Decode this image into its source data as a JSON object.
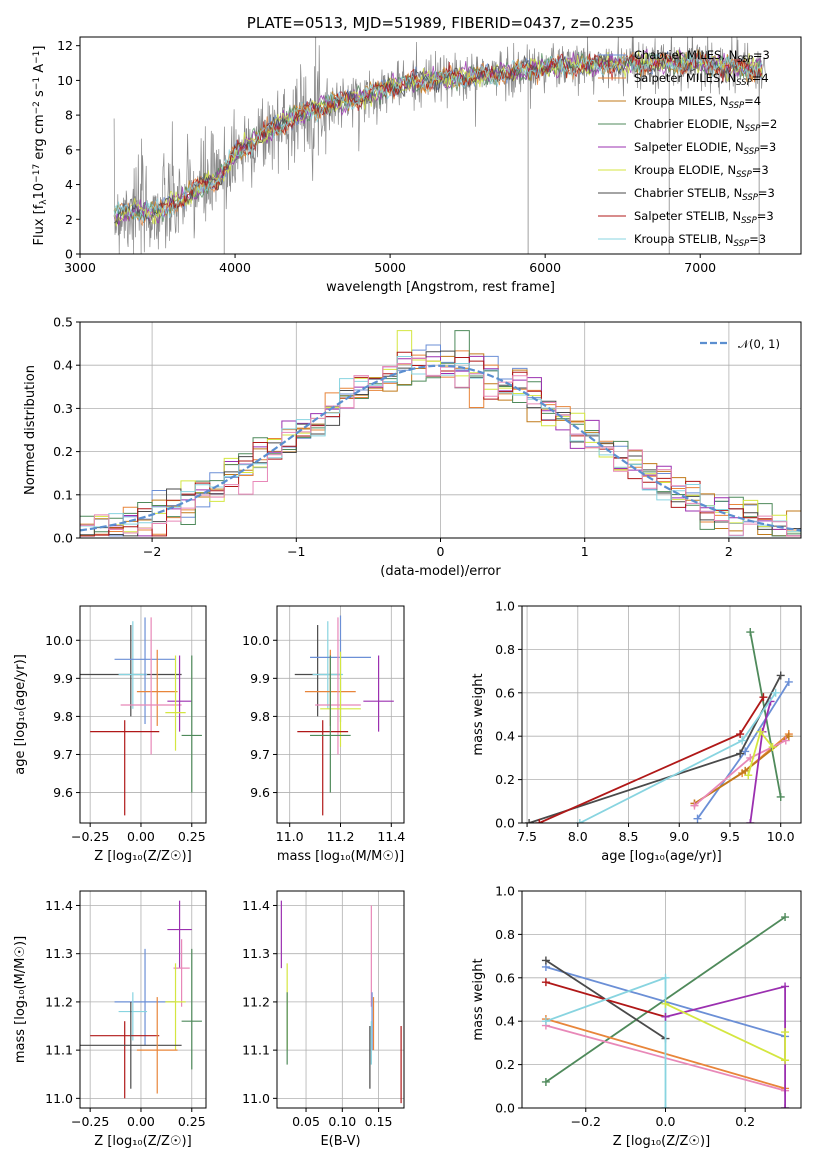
{
  "colors": {
    "chabrier_miles": "#6b8fd6",
    "salpeter_miles": "#e8853a",
    "kroupa_miles": "#c07a1a",
    "chabrier_elodie": "#4f8a5b",
    "salpeter_elodie": "#9b30b0",
    "kroupa_elodie": "#d4e640",
    "chabrier_stelib": "#4a4a4a",
    "salpeter_stelib": "#b01818",
    "kroupa_stelib": "#88d4e0",
    "normal": "#5b8fd0",
    "pink": "#e888b8",
    "grey": "#888888"
  },
  "chart_data": [
    {
      "id": "spectrum",
      "type": "line",
      "title": "PLATE=0513, MJD=51989, FIBERID=0437, z=0.235",
      "xlabel": "wavelength [Angstrom, rest frame]",
      "ylabel_parts": [
        "Flux [f",
        "λ",
        "10",
        "−17",
        " erg cm",
        "−2",
        " s",
        "−1",
        " A",
        "−1",
        "]"
      ],
      "xlim": [
        3000,
        7650
      ],
      "ylim": [
        0,
        12.5
      ],
      "xticks": [
        3000,
        4000,
        5000,
        6000,
        7000
      ],
      "yticks": [
        0,
        2,
        4,
        6,
        8,
        10,
        12
      ],
      "grid": false,
      "legend_position": "top-right",
      "legend": [
        {
          "label": "Chabrier MILES, N",
          "sub": "SSP",
          "suffix": "=3",
          "color": "chabrier_miles"
        },
        {
          "label": "Salpeter MILES, N",
          "sub": "SSP",
          "suffix": "=4",
          "color": "salpeter_miles"
        },
        {
          "label": "Kroupa MILES, N",
          "sub": "SSP",
          "suffix": "=4",
          "color": "kroupa_miles"
        },
        {
          "label": "Chabrier ELODIE, N",
          "sub": "SSP",
          "suffix": "=2",
          "color": "chabrier_elodie"
        },
        {
          "label": "Salpeter ELODIE, N",
          "sub": "SSP",
          "suffix": "=3",
          "color": "salpeter_elodie"
        },
        {
          "label": "Kroupa ELODIE, N",
          "sub": "SSP",
          "suffix": "=3",
          "color": "kroupa_elodie"
        },
        {
          "label": "Chabrier STELIB, N",
          "sub": "SSP",
          "suffix": "=3",
          "color": "chabrier_stelib"
        },
        {
          "label": "Salpeter STELIB, N",
          "sub": "SSP",
          "suffix": "=3",
          "color": "salpeter_stelib"
        },
        {
          "label": "Kroupa STELIB, N",
          "sub": "SSP",
          "suffix": "=3",
          "color": "kroupa_stelib"
        }
      ],
      "continuum": [
        [
          3220,
          2.2
        ],
        [
          3300,
          2.5
        ],
        [
          3500,
          2.4
        ],
        [
          3700,
          3.4
        ],
        [
          3800,
          4.0
        ],
        [
          3900,
          4.3
        ],
        [
          4000,
          5.8
        ],
        [
          4200,
          7.0
        ],
        [
          4400,
          8.0
        ],
        [
          4600,
          8.6
        ],
        [
          4800,
          9.0
        ],
        [
          5000,
          9.6
        ],
        [
          5200,
          10.0
        ],
        [
          5500,
          10.2
        ],
        [
          5800,
          10.5
        ],
        [
          6000,
          10.8
        ],
        [
          6300,
          10.9
        ],
        [
          6600,
          11.0
        ],
        [
          7000,
          11.0
        ],
        [
          7400,
          10.6
        ]
      ]
    },
    {
      "id": "residuals",
      "type": "histogram",
      "xlabel": "(data-model)/error",
      "ylabel": "Normed distribution",
      "xlim": [
        -2.5,
        2.5
      ],
      "ylim": [
        0,
        0.5
      ],
      "xticks": [
        -2,
        -1,
        0,
        1,
        2
      ],
      "xtick_labels": [
        "−2",
        "−1",
        "0",
        "1",
        "2"
      ],
      "yticks": [
        0,
        0.1,
        0.2,
        0.3,
        0.4,
        0.5
      ],
      "grid": true,
      "legend_position": "top-right",
      "legend": [
        {
          "label": "𝒩(0, 1)",
          "color": "normal"
        }
      ],
      "bins": {
        "start": -2.5,
        "width": 0.1,
        "count": 50
      },
      "peaks": {
        "kroupa_elodie": 0.48,
        "chabrier_elodie": 0.48,
        "kroupa_stelib": 0.42,
        "salpeter_stelib": 0.43
      }
    },
    {
      "id": "age_vs_Z",
      "type": "errorbar",
      "xlabel": "Z [log₁₀(Z/Z☉)]",
      "ylabel": "age  [log₁₀(age/yr)]",
      "xlim": [
        -0.3,
        0.32
      ],
      "ylim": [
        9.52,
        10.09
      ],
      "xticks": [
        -0.25,
        0,
        0.25
      ],
      "xtick_labels": [
        "−0.25",
        "0.00",
        "0.25"
      ],
      "yticks": [
        9.6,
        9.7,
        9.8,
        9.9,
        10.0
      ],
      "grid": true,
      "points": [
        {
          "color": "chabrier_stelib",
          "x": -0.05,
          "xerr": 0.25,
          "y": 9.91,
          "yerr": [
            0.11,
            0.13
          ]
        },
        {
          "color": "kroupa_stelib",
          "x": -0.04,
          "xerr": 0.07,
          "y": 9.91,
          "yerr": [
            0.09,
            0.14
          ]
        },
        {
          "color": "chabrier_miles",
          "x": 0.02,
          "xerr": 0.15,
          "y": 9.95,
          "yerr": [
            0.17,
            0.11
          ]
        },
        {
          "color": "salpeter_miles",
          "x": 0.08,
          "xerr": 0.1,
          "y": 9.865,
          "yerr": [
            0.09,
            0.11
          ]
        },
        {
          "color": "pink",
          "x": 0.05,
          "xerr": 0.15,
          "y": 9.83,
          "yerr": [
            0.13,
            0.23
          ]
        },
        {
          "color": "salpeter_elodie",
          "x": 0.19,
          "xerr": 0.06,
          "y": 9.84,
          "yerr": [
            0.08,
            0.12
          ]
        },
        {
          "color": "kroupa_elodie",
          "x": 0.17,
          "xerr": 0.05,
          "y": 9.81,
          "yerr": [
            0.1,
            0.15
          ]
        },
        {
          "color": "salpeter_stelib",
          "x": -0.08,
          "xerr": 0.17,
          "y": 9.76,
          "yerr": [
            0.22,
            0.03
          ]
        },
        {
          "color": "chabrier_elodie",
          "x": 0.25,
          "xerr": 0.05,
          "y": 9.75,
          "yerr": [
            0.15,
            0.21
          ]
        }
      ]
    },
    {
      "id": "age_vs_mass",
      "type": "errorbar",
      "xlabel": "mass [log₁₀(M/M☉)]",
      "ylabel": "",
      "xlim": [
        10.95,
        11.45
      ],
      "ylim": [
        9.52,
        10.09
      ],
      "xticks": [
        11.0,
        11.2,
        11.4
      ],
      "xtick_labels": [
        "11.0",
        "11.2",
        "11.4"
      ],
      "yticks": [
        9.6,
        9.7,
        9.8,
        9.9,
        10.0
      ],
      "grid": true,
      "points": [
        {
          "color": "chabrier_stelib",
          "x": 11.11,
          "xerr": 0.09,
          "y": 9.91,
          "yerr": [
            0.11,
            0.13
          ]
        },
        {
          "color": "kroupa_stelib",
          "x": 11.15,
          "xerr": 0.06,
          "y": 9.91,
          "yerr": [
            0.09,
            0.14
          ]
        },
        {
          "color": "chabrier_miles",
          "x": 11.2,
          "xerr": 0.12,
          "y": 9.955,
          "yerr": [
            0.17,
            0.11
          ]
        },
        {
          "color": "salpeter_miles",
          "x": 11.16,
          "xerr": 0.1,
          "y": 9.865,
          "yerr": [
            0.09,
            0.11
          ]
        },
        {
          "color": "pink",
          "x": 11.19,
          "xerr": 0.09,
          "y": 9.83,
          "yerr": [
            0.13,
            0.23
          ]
        },
        {
          "color": "salpeter_elodie",
          "x": 11.35,
          "xerr": 0.06,
          "y": 9.84,
          "yerr": [
            0.08,
            0.12
          ]
        },
        {
          "color": "kroupa_elodie",
          "x": 11.2,
          "xerr": 0.08,
          "y": 9.82,
          "yerr": [
            0.1,
            0.15
          ]
        },
        {
          "color": "salpeter_stelib",
          "x": 11.13,
          "xerr": 0.1,
          "y": 9.76,
          "yerr": [
            0.22,
            0.03
          ]
        },
        {
          "color": "chabrier_elodie",
          "x": 11.16,
          "xerr": 0.08,
          "y": 9.75,
          "yerr": [
            0.15,
            0.21
          ]
        }
      ]
    },
    {
      "id": "weight_vs_age",
      "type": "line",
      "xlabel": "age  [log₁₀(age/yr)]",
      "ylabel": "mass weight",
      "xlim": [
        7.45,
        10.2
      ],
      "ylim": [
        0,
        1
      ],
      "xticks": [
        7.5,
        8.0,
        8.5,
        9.0,
        9.5,
        10.0
      ],
      "xtick_labels": [
        "7.5",
        "8.0",
        "8.5",
        "9.0",
        "9.5",
        "10.0"
      ],
      "yticks": [
        0,
        0.2,
        0.4,
        0.6,
        0.8,
        1.0
      ],
      "grid": true,
      "series": [
        {
          "color": "chabrier_miles",
          "points": [
            [
              9.18,
              0.02
            ],
            [
              9.65,
              0.33
            ],
            [
              10.08,
              0.65
            ]
          ]
        },
        {
          "color": "salpeter_miles",
          "points": [
            [
              9.15,
              0.09
            ],
            [
              9.62,
              0.23
            ],
            [
              10.08,
              0.41
            ]
          ]
        },
        {
          "color": "kroupa_miles",
          "points": [
            [
              9.15,
              0.09
            ],
            [
              9.65,
              0.24
            ],
            [
              10.08,
              0.4
            ]
          ]
        },
        {
          "color": "pink",
          "points": [
            [
              9.15,
              0.08
            ],
            [
              9.7,
              0.3
            ],
            [
              10.05,
              0.38
            ]
          ]
        },
        {
          "color": "chabrier_elodie",
          "points": [
            [
              9.7,
              0.88
            ],
            [
              10.0,
              0.12
            ]
          ]
        },
        {
          "color": "salpeter_elodie",
          "points": [
            [
              9.7,
              0.0
            ],
            [
              9.82,
              0.42
            ],
            [
              9.9,
              0.56
            ]
          ]
        },
        {
          "color": "kroupa_elodie",
          "points": [
            [
              9.68,
              0.22
            ],
            [
              9.8,
              0.42
            ],
            [
              9.92,
              0.35
            ]
          ]
        },
        {
          "color": "chabrier_stelib",
          "points": [
            [
              7.52,
              0.0
            ],
            [
              9.6,
              0.32
            ],
            [
              10.0,
              0.68
            ]
          ]
        },
        {
          "color": "salpeter_stelib",
          "points": [
            [
              7.62,
              0.0
            ],
            [
              9.6,
              0.41
            ],
            [
              9.83,
              0.58
            ]
          ]
        },
        {
          "color": "kroupa_stelib",
          "points": [
            [
              8.02,
              0.0
            ],
            [
              9.62,
              0.38
            ],
            [
              9.95,
              0.6
            ]
          ]
        }
      ]
    },
    {
      "id": "mass_vs_Z",
      "type": "errorbar",
      "xlabel": "Z [log₁₀(Z/Z☉)]",
      "ylabel": "mass [log₁₀(M/M☉)]",
      "xlim": [
        -0.3,
        0.32
      ],
      "ylim": [
        10.98,
        11.43
      ],
      "xticks": [
        -0.25,
        0,
        0.25
      ],
      "xtick_labels": [
        "−0.25",
        "0.00",
        "0.25"
      ],
      "yticks": [
        11.0,
        11.1,
        11.2,
        11.3,
        11.4
      ],
      "grid": true,
      "points": [
        {
          "color": "salpeter_elodie",
          "x": 0.19,
          "xerr": 0.06,
          "y": 11.35,
          "yerr": [
            0.08,
            0.06
          ]
        },
        {
          "color": "pink",
          "x": 0.2,
          "xerr": 0.04,
          "y": 11.27,
          "yerr": [
            0.08,
            0.06
          ]
        },
        {
          "color": "chabrier_miles",
          "x": 0.02,
          "xerr": 0.15,
          "y": 11.2,
          "yerr": [
            0.09,
            0.11
          ]
        },
        {
          "color": "kroupa_elodie",
          "x": 0.17,
          "xerr": 0.05,
          "y": 11.2,
          "yerr": [
            0.1,
            0.08
          ]
        },
        {
          "color": "kroupa_stelib",
          "x": -0.04,
          "xerr": 0.07,
          "y": 11.18,
          "yerr": [
            0.06,
            0.04
          ]
        },
        {
          "color": "chabrier_elodie",
          "x": 0.25,
          "xerr": 0.05,
          "y": 11.16,
          "yerr": [
            0.1,
            0.15
          ]
        },
        {
          "color": "salpeter_stelib",
          "x": -0.08,
          "xerr": 0.17,
          "y": 11.13,
          "yerr": [
            0.13,
            0.03
          ]
        },
        {
          "color": "chabrier_stelib",
          "x": -0.05,
          "xerr": 0.25,
          "y": 11.11,
          "yerr": [
            0.09,
            0.09
          ]
        },
        {
          "color": "salpeter_miles",
          "x": 0.08,
          "xerr": 0.1,
          "y": 11.1,
          "yerr": [
            0.09,
            0.11
          ]
        }
      ]
    },
    {
      "id": "mass_vs_ebv",
      "type": "errorbar",
      "xlabel": "E(B-V)",
      "ylabel": "",
      "xlim": [
        0.01,
        0.185
      ],
      "ylim": [
        10.98,
        11.43
      ],
      "xticks": [
        0.05,
        0.1,
        0.15
      ],
      "xtick_labels": [
        "0.05",
        "0.10",
        "0.15"
      ],
      "yticks": [
        11.0,
        11.1,
        11.2,
        11.3,
        11.4
      ],
      "grid": true,
      "points": [
        {
          "color": "salpeter_elodie",
          "x": 0.016,
          "y": 11.35,
          "yerr": [
            0.08,
            0.06
          ]
        },
        {
          "color": "kroupa_elodie",
          "x": 0.024,
          "y": 11.2,
          "yerr": [
            0.1,
            0.08
          ]
        },
        {
          "color": "chabrier_elodie",
          "x": 0.024,
          "y": 11.17,
          "yerr": [
            0.1,
            0.05
          ]
        },
        {
          "color": "pink",
          "x": 0.14,
          "y": 11.27,
          "yerr": [
            0.08,
            0.13
          ]
        },
        {
          "color": "salpeter_miles",
          "x": 0.143,
          "y": 11.16,
          "yerr": [
            0.06,
            0.05
          ]
        },
        {
          "color": "chabrier_miles",
          "x": 0.141,
          "y": 11.16,
          "yerr": [
            0.06,
            0.06
          ]
        },
        {
          "color": "kroupa_stelib",
          "x": 0.14,
          "y": 11.12,
          "yerr": [
            0.05,
            0.04
          ]
        },
        {
          "color": "chabrier_stelib",
          "x": 0.138,
          "y": 11.1,
          "yerr": [
            0.08,
            0.05
          ]
        },
        {
          "color": "salpeter_stelib",
          "x": 0.181,
          "y": 11.06,
          "yerr": [
            0.07,
            0.09
          ]
        }
      ]
    },
    {
      "id": "weight_vs_Z",
      "type": "line",
      "xlabel": "Z [log₁₀(Z/Z☉)]",
      "ylabel": "mass weight",
      "xlim": [
        -0.36,
        0.34
      ],
      "ylim": [
        0,
        1
      ],
      "xticks": [
        -0.2,
        0.0,
        0.2
      ],
      "xtick_labels": [
        "−0.2",
        "0.0",
        "0.2"
      ],
      "yticks": [
        0,
        0.2,
        0.4,
        0.6,
        0.8,
        1.0
      ],
      "grid": true,
      "series": [
        {
          "color": "chabrier_elodie",
          "points": [
            [
              -0.3,
              0.12
            ],
            [
              0.3,
              0.88
            ]
          ]
        },
        {
          "color": "chabrier_miles",
          "points": [
            [
              -0.3,
              0.65
            ],
            [
              0.3,
              0.33
            ]
          ]
        },
        {
          "color": "chabrier_stelib",
          "points": [
            [
              -0.3,
              0.68
            ],
            [
              0.0,
              0.32
            ]
          ]
        },
        {
          "color": "salpeter_stelib",
          "points": [
            [
              -0.3,
              0.58
            ],
            [
              0.0,
              0.42
            ]
          ]
        },
        {
          "color": "salpeter_miles",
          "points": [
            [
              -0.3,
              0.41
            ],
            [
              0.3,
              0.09
            ]
          ]
        },
        {
          "color": "pink",
          "points": [
            [
              -0.3,
              0.38
            ],
            [
              0.3,
              0.08
            ]
          ]
        },
        {
          "color": "kroupa_stelib",
          "points": [
            [
              -0.3,
              0.4
            ],
            [
              0.0,
              0.6
            ],
            [
              0.0,
              0.0
            ]
          ]
        },
        {
          "color": "salpeter_elodie",
          "points": [
            [
              0.0,
              0.42
            ],
            [
              0.3,
              0.56
            ],
            [
              0.3,
              0.0
            ]
          ]
        },
        {
          "color": "kroupa_elodie",
          "points": [
            [
              0.0,
              0.48
            ],
            [
              0.3,
              0.22
            ],
            [
              0.3,
              0.35
            ]
          ]
        }
      ]
    }
  ]
}
